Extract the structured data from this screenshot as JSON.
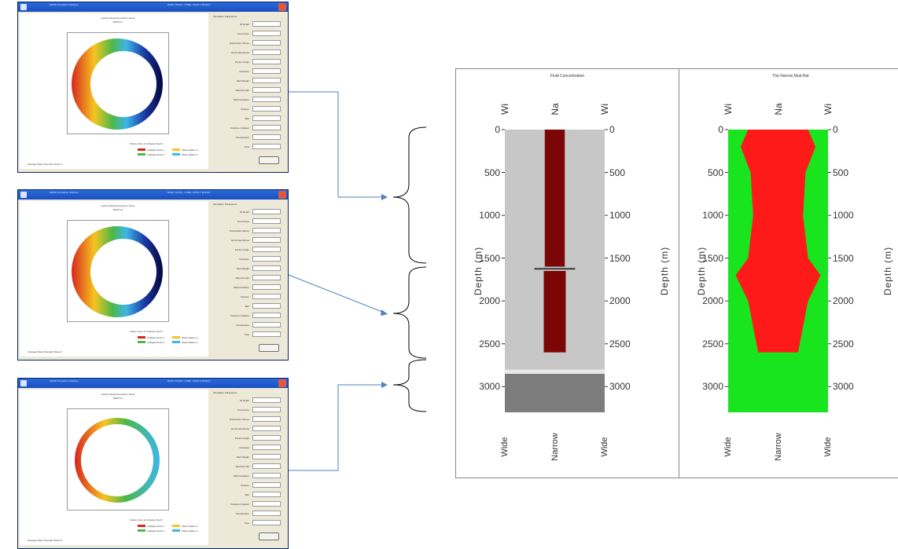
{
  "windows": [
    {
      "title": "MAPIK Simulation Wellbore",
      "title_right": "BARU TALVIS - TUBE - MUTA 1 MUDDY",
      "plot_title": "Hoisted Weight Extraction Shear",
      "plot_subtitle": "DEPTH 1",
      "legend_title": "Failure Zone at Collapse Depth",
      "legend": [
        {
          "label": "Collapse Zone 1",
          "color": "#d7261e"
        },
        {
          "label": "Shear Failure 2",
          "color": "#f6c521"
        },
        {
          "label": "Collapse Zone 3",
          "color": "#4bb848"
        },
        {
          "label": "Shear Failure 4",
          "color": "#3db6e8"
        }
      ],
      "bottom_text": "Average Shear Strength Stress 1",
      "panel_header": "Simulation Parameters",
      "fields": [
        "ID Depth",
        "Pore Press",
        "Overburden Stress",
        "Horizontal Stress",
        "Friction Angle",
        "Cohesion",
        "Mud Weight",
        "Well Azimuth",
        "Well Inclination",
        "Poisson",
        "Biot",
        "Fracture Gradient",
        "Temperature",
        "Time"
      ],
      "ring": {
        "variant": "collapse",
        "colors": [
          "#d7261e",
          "#f6c521",
          "#4bb848",
          "#3db6e8",
          "#1b3aa6",
          "#05053d"
        ]
      }
    },
    {
      "title": "MAPIK Simulation Wellbore",
      "title_right": "BARU TALVIS - TUBE - MUTA 2 MUDDY",
      "plot_title": "Hoisted Weight Extraction Shear",
      "plot_subtitle": "DEPTH 2",
      "legend_title": "Failure Zone at Collapse Depth",
      "legend": [
        {
          "label": "Collapse Zone 1",
          "color": "#d7261e"
        },
        {
          "label": "Shear Failure 2",
          "color": "#f6c521"
        },
        {
          "label": "Collapse Zone 3",
          "color": "#4bb848"
        },
        {
          "label": "Shear Failure 4",
          "color": "#3db6e8"
        }
      ],
      "bottom_text": "Average Shear Strength Stress 2",
      "panel_header": "Simulation Parameters",
      "fields": [
        "ID Depth",
        "Pore Press",
        "Overburden Stress",
        "Horizontal Stress",
        "Friction Angle",
        "Cohesion",
        "Mud Weight",
        "Well Azimuth",
        "Well Inclination",
        "Poisson",
        "Biot",
        "Fracture Gradient",
        "Temperature",
        "Time"
      ],
      "ring": {
        "variant": "collapse",
        "colors": [
          "#d7261e",
          "#f6c521",
          "#4bb848",
          "#3db6e8",
          "#1b3aa6",
          "#05053d"
        ]
      }
    },
    {
      "title": "MAPIK Simulation Wellbore",
      "title_right": "BARU TALVIS - TUBE - MUTA 3 MUDDY",
      "plot_title": "Hoisted Weight Extraction Shear",
      "plot_subtitle": "DEPTH 3",
      "legend_title": "Failure Zone at Collapse Depth",
      "legend": [
        {
          "label": "Collapse Zone 1",
          "color": "#d7261e"
        },
        {
          "label": "Shear Failure 2",
          "color": "#f6c521"
        },
        {
          "label": "Collapse Zone 3",
          "color": "#4bb848"
        },
        {
          "label": "Shear Failure 4",
          "color": "#3db6e8"
        }
      ],
      "bottom_text": "Average Shear Strength Stress 3",
      "panel_header": "Simulation Parameters",
      "fields": [
        "ID Depth",
        "Pore Press",
        "Overburden Stress",
        "Horizontal Stress",
        "Friction Angle",
        "Cohesion",
        "Mud Weight",
        "Well Azimuth",
        "Well Inclination",
        "Poisson",
        "Biot",
        "Fracture Gradient",
        "Temperature",
        "Time"
      ],
      "ring": {
        "variant": "full",
        "colors": [
          "#d7261e",
          "#f6c521",
          "#4bb848",
          "#3db6e8"
        ]
      }
    }
  ],
  "charts": [
    {
      "title": "Fluid Concentration",
      "top_labels": [
        "Wi",
        "Na",
        "Wi"
      ],
      "bottom_labels": [
        "Wide",
        "Narrow",
        "Wide"
      ],
      "ylabel": "Depth (m)",
      "ticks": [
        "0",
        "500",
        "1000",
        "1500",
        "2000",
        "2500",
        "3000"
      ],
      "colors": {
        "background": "#c7c7c7",
        "core": "#7a0606",
        "base": "#7d7d7d"
      }
    },
    {
      "title": "The Narrow Mud Rat",
      "top_labels": [
        "Wi",
        "Na",
        "Wi"
      ],
      "bottom_labels": [
        "Wide",
        "Narrow",
        "Wide"
      ],
      "ylabel": "Depth (m)",
      "ticks": [
        "0",
        "500",
        "1000",
        "1500",
        "2000",
        "2500",
        "3000"
      ],
      "colors": {
        "background": "#18e51e",
        "core": "#ff1a1a"
      }
    }
  ],
  "chart_data": [
    {
      "type": "area",
      "title": "Fluid Concentration",
      "ylabel": "Depth (m)",
      "ylim": [
        0,
        3300
      ],
      "y_ticks": [
        0,
        500,
        1000,
        1500,
        2000,
        2500,
        3000
      ],
      "x_categories": [
        "Wide",
        "Narrow",
        "Wide"
      ],
      "series": [
        {
          "name": "Narrow",
          "depth": [
            0,
            1600,
            1650,
            2600
          ],
          "width_fraction": [
            0.2,
            0.2,
            0.22,
            0.22
          ]
        }
      ]
    },
    {
      "type": "area",
      "title": "The Narrow Mud Rat",
      "ylabel": "Depth (m)",
      "ylim": [
        0,
        3300
      ],
      "y_ticks": [
        0,
        500,
        1000,
        1500,
        2000,
        2500,
        3000
      ],
      "x_categories": [
        "Wide",
        "Narrow",
        "Wide"
      ],
      "series": [
        {
          "name": "Narrow",
          "depth": [
            0,
            200,
            500,
            1000,
            1500,
            1700,
            2000,
            2600
          ],
          "width_fraction": [
            0.6,
            0.75,
            0.55,
            0.5,
            0.6,
            0.85,
            0.6,
            0.4
          ]
        }
      ]
    }
  ]
}
